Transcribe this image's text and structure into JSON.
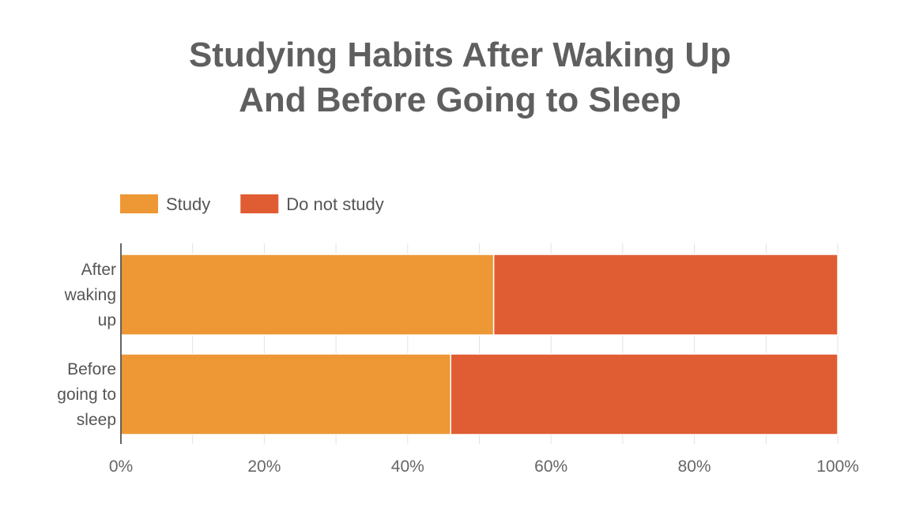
{
  "chart_data": {
    "type": "bar",
    "orientation": "horizontal",
    "stacked": "percent",
    "title": "Studying Habits After Waking Up And Before Going to Sleep",
    "title_lines": [
      "Studying Habits After Waking Up",
      "And Before Going to Sleep"
    ],
    "categories": [
      "After waking up",
      "Before going to sleep"
    ],
    "category_lines": [
      [
        "After",
        "waking",
        "up"
      ],
      [
        "Before",
        "going to",
        "sleep"
      ]
    ],
    "series": [
      {
        "name": "Study",
        "color": "#ed9735",
        "values": [
          52,
          46
        ]
      },
      {
        "name": "Do not study",
        "color": "#e05d33",
        "values": [
          48,
          54
        ]
      }
    ],
    "xlim": [
      0,
      100
    ],
    "x_ticks": [
      "0%",
      "20%",
      "40%",
      "60%",
      "80%",
      "100%"
    ],
    "x_tick_values": [
      0,
      20,
      40,
      60,
      80,
      100
    ],
    "grid": true,
    "legend_position": "top-left",
    "xlabel": "",
    "ylabel": ""
  }
}
